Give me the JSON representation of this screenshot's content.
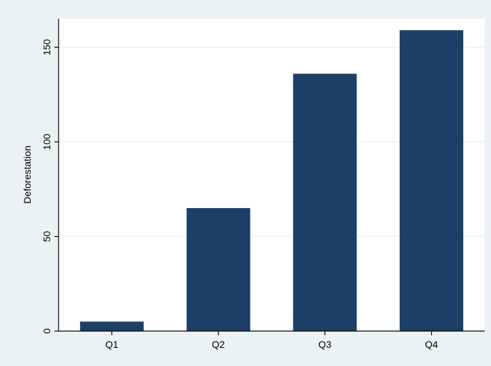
{
  "chart_data": {
    "type": "bar",
    "title": "",
    "xlabel": "",
    "ylabel": "Deforestation",
    "categories": [
      "Q1",
      "Q2",
      "Q3",
      "Q4"
    ],
    "values": [
      5,
      65,
      136,
      159
    ],
    "ylim": [
      0,
      165
    ],
    "yticks": [
      0,
      50,
      100,
      150
    ],
    "ytick_labels": [
      "0",
      "50",
      "100",
      "150"
    ],
    "grid": true,
    "legend": "none",
    "colors": {
      "bar": "#1b3f66",
      "plot_background": "#ffffff",
      "outer_background": "#eaf2f3",
      "gridline": "#eaf2f3",
      "axis": "#000000"
    }
  }
}
